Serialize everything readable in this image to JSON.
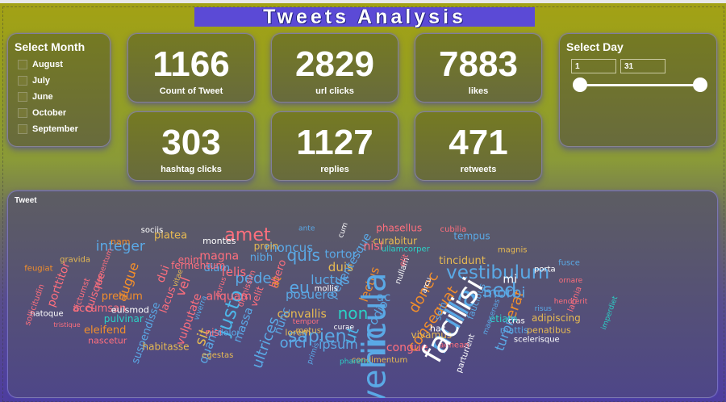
{
  "report": {
    "title": "Tweets Analysis"
  },
  "month_slicer": {
    "title": "Select Month",
    "options": [
      "August",
      "July",
      "June",
      "October",
      "September"
    ]
  },
  "kpis": [
    {
      "value": "1166",
      "label": "Count of Tweet"
    },
    {
      "value": "2829",
      "label": "url clicks"
    },
    {
      "value": "7883",
      "label": "likes"
    },
    {
      "value": "303",
      "label": "hashtag clicks"
    },
    {
      "value": "1127",
      "label": "replies"
    },
    {
      "value": "471",
      "label": "retweets"
    }
  ],
  "day_slicer": {
    "title": "Select Day",
    "start": "1",
    "end": "31"
  },
  "wordcloud": {
    "title": "Tweet",
    "words": [
      {
        "t": "in",
        "c": "#5aa9e6"
      },
      {
        "t": "nulla",
        "c": "#5aa9e6"
      },
      {
        "t": "vestibulum",
        "c": "#5aa9e6"
      },
      {
        "t": "sed",
        "c": "#5aa9e6"
      },
      {
        "t": "sapien",
        "c": "#5aa9e6"
      },
      {
        "t": "justo",
        "c": "#4db6e8"
      },
      {
        "t": "amet",
        "c": "#ff6f7d"
      },
      {
        "t": "donec",
        "c": "#f28e2b"
      },
      {
        "t": "consequat",
        "c": "#f28e2b"
      },
      {
        "t": "sit",
        "c": "#e7ba52"
      },
      {
        "t": "ut",
        "c": "#4db6e8"
      },
      {
        "t": "eu",
        "c": "#5aa9e6"
      },
      {
        "t": "quis",
        "c": "#5aa9e6"
      },
      {
        "t": "non",
        "c": "#2bd1c6"
      },
      {
        "t": "erat",
        "c": "#f28e2b"
      },
      {
        "t": "morbi",
        "c": "#5aa9e6"
      },
      {
        "t": "pede",
        "c": "#5aa9e6"
      },
      {
        "t": "ultrices",
        "c": "#5aa9e6"
      },
      {
        "t": "orci",
        "c": "#5aa9e6"
      },
      {
        "t": "integer",
        "c": "#5aa9e6"
      },
      {
        "t": "augue",
        "c": "#f28e2b"
      },
      {
        "t": "felis",
        "c": "#ff6f7d"
      },
      {
        "t": "vel",
        "c": "#ff6f7d"
      },
      {
        "t": "ipsum",
        "c": "#5aa9e6"
      },
      {
        "t": "luctus",
        "c": "#5aa9e6"
      },
      {
        "t": "duis",
        "c": "#e7ba52"
      },
      {
        "t": "lectus",
        "c": "#f28e2b"
      },
      {
        "t": "posuere",
        "c": "#5aa9e6"
      },
      {
        "t": "odio",
        "c": "#5aa9e6"
      },
      {
        "t": "ac",
        "c": "#5aa9e6"
      },
      {
        "t": "at",
        "c": "#f28e2b"
      },
      {
        "t": "etiam",
        "c": "#2bd1c6"
      },
      {
        "t": "turpis",
        "c": "#5aa9e6"
      },
      {
        "t": "convallis",
        "c": "#e7ba52"
      },
      {
        "t": "congue",
        "c": "#ff6f7d"
      },
      {
        "t": "tincidunt",
        "c": "#e7ba52"
      },
      {
        "t": "rhoncus",
        "c": "#5aa9e6"
      },
      {
        "t": "pellentesque",
        "c": "#5aa9e6"
      },
      {
        "t": "phasellus",
        "c": "#ff6f7d"
      },
      {
        "t": "curabitur",
        "c": "#e7ba52"
      },
      {
        "t": "tempus",
        "c": "#5aa9e6"
      },
      {
        "t": "magna",
        "c": "#ff6f7d"
      },
      {
        "t": "aliquam",
        "c": "#ff6f7d"
      },
      {
        "t": "quam",
        "c": "#5aa9e6"
      },
      {
        "t": "nisl",
        "c": "#ff6f7d"
      },
      {
        "t": "platea",
        "c": "#e7ba52"
      },
      {
        "t": "pretium",
        "c": "#f28e2b"
      },
      {
        "t": "quisque",
        "c": "#ff6f7d"
      },
      {
        "t": "accumsan",
        "c": "#ff6f7d"
      },
      {
        "t": "eleifend",
        "c": "#f28e2b"
      },
      {
        "t": "nascetur",
        "c": "#ff6f7d"
      },
      {
        "t": "pulvinar",
        "c": "#2bd1c6"
      },
      {
        "t": "suspendisse",
        "c": "#5aa9e6"
      },
      {
        "t": "mattis",
        "c": "#5aa9e6"
      },
      {
        "t": "adipiscing",
        "c": "#e7ba52"
      },
      {
        "t": "penatibus",
        "c": "#e7ba52"
      },
      {
        "t": "vivamus",
        "c": "#e7ba52"
      },
      {
        "t": "dui",
        "c": "#ff6f7d"
      },
      {
        "t": "enim",
        "c": "#ff6f7d"
      },
      {
        "t": "diam",
        "c": "#5aa9e6"
      },
      {
        "t": "nibh",
        "c": "#5aa9e6"
      },
      {
        "t": "proin",
        "c": "#e7ba52"
      },
      {
        "t": "tortor",
        "c": "#5aa9e6"
      },
      {
        "t": "mi",
        "c": "#ffffff"
      },
      {
        "t": "nunc",
        "c": "#5aa9e6"
      },
      {
        "t": "lorem",
        "c": "#e7ba52"
      },
      {
        "t": "metus",
        "c": "#e7ba52"
      },
      {
        "t": "massa",
        "c": "#5aa9e6"
      },
      {
        "t": "nisi",
        "c": "#ff6f7d"
      },
      {
        "t": "dolor",
        "c": "#5aa9e6"
      },
      {
        "t": "gravida",
        "c": "#e7ba52"
      },
      {
        "t": "porttitor",
        "c": "#ff6f7d"
      },
      {
        "t": "feugiat",
        "c": "#f28e2b"
      },
      {
        "t": "natoque",
        "c": "#ffffff"
      },
      {
        "t": "sollicitudin",
        "c": "#ff6f7d"
      },
      {
        "t": "dictumst",
        "c": "#ff6f7d"
      },
      {
        "t": "vulputate",
        "c": "#ff6f7d"
      },
      {
        "t": "habitasse",
        "c": "#e7ba52"
      },
      {
        "t": "libero",
        "c": "#ff6f7d"
      },
      {
        "t": "velit",
        "c": "#ff6f7d"
      },
      {
        "t": "montes",
        "c": "#ffffff"
      },
      {
        "t": "nam",
        "c": "#f28e2b"
      },
      {
        "t": "lacus",
        "c": "#ff6f7d"
      },
      {
        "t": "faucibus",
        "c": "#5aa9e6"
      },
      {
        "t": "sem",
        "c": "#5aa9e6"
      },
      {
        "t": "hac",
        "c": "#ffffff"
      },
      {
        "t": "condimentum",
        "c": "#e7ba52"
      },
      {
        "t": "parturient",
        "c": "#ffffff"
      },
      {
        "t": "aenean",
        "c": "#ff6f7d"
      },
      {
        "t": "cras",
        "c": "#ffffff"
      },
      {
        "t": "scelerisque",
        "c": "#ffffff"
      },
      {
        "t": "lacinia",
        "c": "#ff6f7d"
      },
      {
        "t": "porta",
        "c": "#ffffff"
      },
      {
        "t": "cubilia",
        "c": "#ff6f7d"
      },
      {
        "t": "magnis",
        "c": "#e7ba52"
      },
      {
        "t": "fusce",
        "c": "#5aa9e6"
      },
      {
        "t": "ullamcorper",
        "c": "#2bd1c6"
      },
      {
        "t": "euismod",
        "c": "#ffffff"
      },
      {
        "t": "tristique",
        "c": "#ff6f7d"
      },
      {
        "t": "egestas",
        "c": "#e7ba52"
      },
      {
        "t": "pharetra",
        "c": "#2bd1c6"
      },
      {
        "t": "hendrerit",
        "c": "#ff6f7d"
      },
      {
        "t": "imperdiet",
        "c": "#2bd1c6"
      },
      {
        "t": "fermentum",
        "c": "#ff6f7d"
      },
      {
        "t": "elementum",
        "c": "#ff6f7d"
      },
      {
        "t": "sociis",
        "c": "#ffffff"
      },
      {
        "t": "ante",
        "c": "#5aa9e6"
      },
      {
        "t": "viverra",
        "c": "#5aa9e6"
      },
      {
        "t": "dignissim",
        "c": "#ff6f7d"
      },
      {
        "t": "vitae",
        "c": "#e7ba52"
      },
      {
        "t": "nullam",
        "c": "#ffffff"
      },
      {
        "t": "mollis",
        "c": "#ffffff"
      },
      {
        "t": "elit",
        "c": "#ff6f7d"
      },
      {
        "t": "risus",
        "c": "#5aa9e6"
      },
      {
        "t": "maecenas",
        "c": "#5aa9e6"
      },
      {
        "t": "curae",
        "c": "#ffffff"
      },
      {
        "t": "primis",
        "c": "#5aa9e6"
      },
      {
        "t": "arcu",
        "c": "#ffffff"
      },
      {
        "t": "tempor",
        "c": "#ff6f7d"
      },
      {
        "t": "purus",
        "c": "#ff6f7d"
      },
      {
        "t": "cum",
        "c": "#ffffff"
      },
      {
        "t": "ornare",
        "c": "#ff6f7d"
      },
      {
        "t": "vehicula",
        "c": "#5aa9e6"
      },
      {
        "t": "facilisi",
        "c": "#ffffff"
      }
    ]
  },
  "colors": {
    "title_bg": "#5b4ad6",
    "card_bg": "#757a22",
    "accent_blue": "#5aa9e6",
    "accent_orange": "#f28e2b",
    "accent_red": "#ff6f7d",
    "accent_gold": "#e7ba52",
    "accent_teal": "#2bd1c6"
  }
}
